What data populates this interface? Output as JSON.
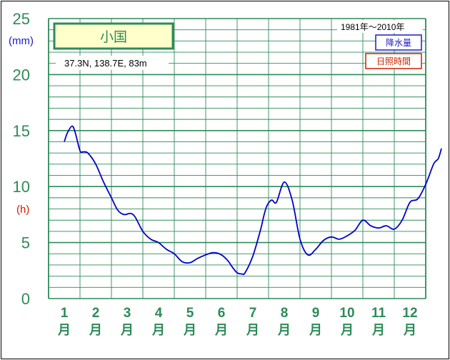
{
  "chart_data": {
    "type": "line",
    "title": "",
    "station_name": "小国",
    "coords_text": "37.3N,  138.7E,  83m",
    "period_text": "1981年～2010年",
    "unit_primary": "(mm)",
    "unit_secondary": "(h)",
    "legend": {
      "precipitation": "降水量",
      "sunshine": "日照時間"
    },
    "month_unit": "月",
    "categories": [
      "1",
      "2",
      "3",
      "4",
      "5",
      "6",
      "7",
      "8",
      "9",
      "10",
      "11",
      "12"
    ],
    "y_ticks": [
      "0",
      "5",
      "10",
      "15",
      "20",
      "25"
    ],
    "ylim": [
      0,
      25
    ],
    "grid": true,
    "series": [
      {
        "name": "降水量",
        "color": "#0000cc",
        "x": [
          0.5,
          0.6,
          0.75,
          0.85,
          1.0,
          1.1,
          1.25,
          1.5,
          1.75,
          2.0,
          2.2,
          2.4,
          2.6,
          2.75,
          3.0,
          3.25,
          3.5,
          3.75,
          4.0,
          4.25,
          4.5,
          4.75,
          5.0,
          5.25,
          5.5,
          5.7,
          5.85,
          6.0,
          6.15,
          6.25,
          6.5,
          6.75,
          6.85,
          6.95,
          7.1,
          7.25,
          7.5,
          7.75,
          8.0,
          8.25,
          8.5,
          8.75,
          9.0,
          9.25,
          9.5,
          9.75,
          10.0,
          10.25,
          10.5,
          10.75,
          11.0,
          11.25,
          11.5,
          11.75,
          12.0,
          12.25,
          12.4,
          12.5
        ],
        "values": [
          14.0,
          14.8,
          15.4,
          14.8,
          13.2,
          13.1,
          13.0,
          12.0,
          10.4,
          9.0,
          7.9,
          7.5,
          7.6,
          7.3,
          6.0,
          5.3,
          5.0,
          4.4,
          4.0,
          3.3,
          3.2,
          3.6,
          3.9,
          4.1,
          3.9,
          3.4,
          2.8,
          2.3,
          2.2,
          2.3,
          3.8,
          6.2,
          7.4,
          8.3,
          8.8,
          8.6,
          10.4,
          8.8,
          5.3,
          3.9,
          4.4,
          5.2,
          5.5,
          5.3,
          5.6,
          6.1,
          7.0,
          6.5,
          6.3,
          6.5,
          6.2,
          7.0,
          8.6,
          8.9,
          10.2,
          12.0,
          12.5,
          13.4
        ]
      }
    ]
  }
}
